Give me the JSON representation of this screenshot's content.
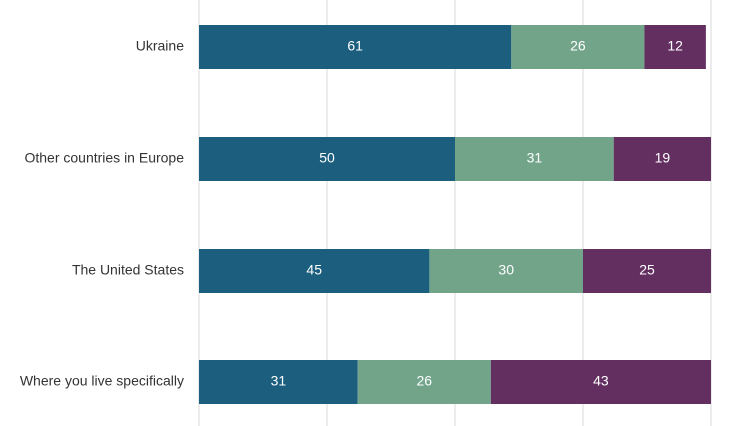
{
  "chart_data": {
    "type": "bar",
    "orientation": "horizontal",
    "stacked": true,
    "categories": [
      "Ukraine",
      "Other countries in Europe",
      "The United States",
      "Where you live specifically"
    ],
    "series": [
      {
        "values": [
          61,
          50,
          45,
          31
        ],
        "color": "#1b5e7e"
      },
      {
        "values": [
          26,
          31,
          30,
          26
        ],
        "color": "#72a48a"
      },
      {
        "values": [
          12,
          19,
          25,
          43
        ],
        "color": "#632f61"
      }
    ],
    "xlim": [
      0,
      100
    ],
    "grid": true,
    "gridline_color": "#d9d9d9",
    "label_color": "#333333",
    "value_label_color": "#ffffff",
    "title": "",
    "xlabel": "",
    "ylabel": ""
  }
}
